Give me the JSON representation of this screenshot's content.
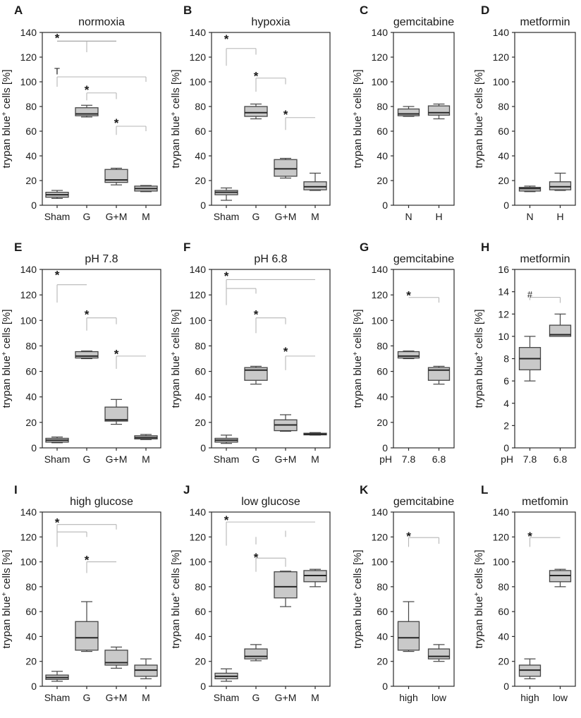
{
  "figure": {
    "ylabel": {
      "pre": "trypan blue",
      "sup": "+",
      "post": " cells [%]"
    }
  },
  "chart_data": [
    {
      "type": "box",
      "panel": "A",
      "title": "normoxia",
      "ylim": [
        0,
        140
      ],
      "ystep": 20,
      "grid": false,
      "categories": [
        "Sham",
        "G",
        "G+M",
        "M"
      ],
      "xprefix": "",
      "boxes": [
        {
          "lo": 5.5,
          "q1": 6.5,
          "med": 8.5,
          "q3": 10.5,
          "hi": 12
        },
        {
          "lo": 71.5,
          "q1": 72.5,
          "med": 74,
          "q3": 79,
          "hi": 81
        },
        {
          "lo": 16.5,
          "q1": 18.5,
          "med": 20.5,
          "q3": 29,
          "hi": 30
        },
        {
          "lo": 11,
          "q1": 11.5,
          "med": 13.5,
          "q3": 15.5,
          "hi": 16
        }
      ],
      "annotations": [
        {
          "t": "*",
          "x": 0,
          "y": 137
        },
        {
          "t": "T",
          "x": 0,
          "y": 109
        },
        {
          "t": "*",
          "x": 1,
          "y": 95
        },
        {
          "t": "*",
          "x": 2,
          "y": 68
        }
      ],
      "sig_lines": [
        {
          "x1": 0,
          "y1": 133,
          "x2": 2,
          "y2": 133,
          "d": 1
        },
        {
          "x1": 1,
          "y1": 133,
          "x2": 1,
          "y2": 124
        },
        {
          "x1": 0,
          "y1": 104,
          "x2": 3,
          "y2": 104
        },
        {
          "x1": 0,
          "y1": 104,
          "x2": 0,
          "y2": 96
        },
        {
          "x1": 3,
          "y1": 104,
          "x2": 3,
          "y2": 100
        },
        {
          "x1": 1,
          "y1": 91,
          "x2": 2,
          "y2": 91
        },
        {
          "x1": 1,
          "y1": 91,
          "x2": 1,
          "y2": 85
        },
        {
          "x1": 2,
          "y1": 91,
          "x2": 2,
          "y2": 86
        },
        {
          "x1": 2,
          "y1": 64,
          "x2": 3,
          "y2": 64
        },
        {
          "x1": 2,
          "y1": 64,
          "x2": 2,
          "y2": 57
        },
        {
          "x1": 3,
          "y1": 64,
          "x2": 3,
          "y2": 60
        }
      ]
    },
    {
      "type": "box",
      "panel": "B",
      "title": "hypoxia",
      "ylim": [
        0,
        140
      ],
      "ystep": 20,
      "grid": false,
      "categories": [
        "Sham",
        "G",
        "G+M",
        "M"
      ],
      "xprefix": "",
      "boxes": [
        {
          "lo": 4,
          "q1": 8.5,
          "med": 10.5,
          "q3": 12,
          "hi": 14
        },
        {
          "lo": 70,
          "q1": 72,
          "med": 75,
          "q3": 80,
          "hi": 82
        },
        {
          "lo": 22,
          "q1": 23.5,
          "med": 29.5,
          "q3": 37,
          "hi": 38
        },
        {
          "lo": 12,
          "q1": 12.5,
          "med": 15,
          "q3": 19,
          "hi": 26
        }
      ],
      "annotations": [
        {
          "t": "*",
          "x": 0,
          "y": 136
        },
        {
          "t": "*",
          "x": 1,
          "y": 106
        },
        {
          "t": "*",
          "x": 2,
          "y": 75
        }
      ],
      "sig_lines": [
        {
          "x1": 0,
          "y1": 127,
          "x2": 1,
          "y2": 127
        },
        {
          "x1": 0,
          "y1": 127,
          "x2": 0,
          "y2": 113
        },
        {
          "x1": 1,
          "y1": 127,
          "x2": 1,
          "y2": 122
        },
        {
          "x1": 1,
          "y1": 103,
          "x2": 2,
          "y2": 103
        },
        {
          "x1": 1,
          "y1": 103,
          "x2": 1,
          "y2": 92
        },
        {
          "x1": 2,
          "y1": 103,
          "x2": 2,
          "y2": 98
        },
        {
          "x1": 2,
          "y1": 71,
          "x2": 3,
          "y2": 71
        },
        {
          "x1": 2,
          "y1": 71,
          "x2": 2,
          "y2": 61
        }
      ]
    },
    {
      "type": "box",
      "panel": "C",
      "title": "gemcitabine",
      "ylim": [
        0,
        140
      ],
      "ystep": 20,
      "grid": false,
      "categories": [
        "N",
        "H"
      ],
      "xprefix": "",
      "boxes": [
        {
          "lo": 72,
          "q1": 72.5,
          "med": 74,
          "q3": 78,
          "hi": 80
        },
        {
          "lo": 70,
          "q1": 73,
          "med": 75,
          "q3": 80.5,
          "hi": 82
        }
      ],
      "annotations": [],
      "sig_lines": []
    },
    {
      "type": "box",
      "panel": "D",
      "title": "metformin",
      "ylim": [
        0,
        140
      ],
      "ystep": 20,
      "grid": false,
      "categories": [
        "N",
        "H"
      ],
      "xprefix": "",
      "boxes": [
        {
          "lo": 11,
          "q1": 11.5,
          "med": 13.5,
          "q3": 14.5,
          "hi": 15.5
        },
        {
          "lo": 12,
          "q1": 12.5,
          "med": 15,
          "q3": 19,
          "hi": 26
        }
      ],
      "annotations": [],
      "sig_lines": []
    },
    {
      "type": "box",
      "panel": "E",
      "title": "pH 7.8",
      "ylim": [
        0,
        140
      ],
      "ystep": 20,
      "grid": false,
      "categories": [
        "Sham",
        "G",
        "G+M",
        "M"
      ],
      "xprefix": "",
      "boxes": [
        {
          "lo": 4,
          "q1": 4.5,
          "med": 6,
          "q3": 7.5,
          "hi": 8.5
        },
        {
          "lo": 70,
          "q1": 70.5,
          "med": 72,
          "q3": 75.5,
          "hi": 76
        },
        {
          "lo": 18.5,
          "q1": 21,
          "med": 22,
          "q3": 32,
          "hi": 38
        },
        {
          "lo": 6.5,
          "q1": 7,
          "med": 8,
          "q3": 9.5,
          "hi": 10.5
        }
      ],
      "annotations": [
        {
          "t": "*",
          "x": 0,
          "y": 137
        },
        {
          "t": "*",
          "x": 1,
          "y": 106
        },
        {
          "t": "*",
          "x": 2,
          "y": 75
        }
      ],
      "sig_lines": [
        {
          "x1": 0,
          "y1": 128,
          "x2": 1,
          "y2": 128
        },
        {
          "x1": 0,
          "y1": 128,
          "x2": 0,
          "y2": 114
        },
        {
          "x1": 1,
          "y1": 102,
          "x2": 2,
          "y2": 102
        },
        {
          "x1": 1,
          "y1": 102,
          "x2": 1,
          "y2": 92
        },
        {
          "x1": 2,
          "y1": 102,
          "x2": 2,
          "y2": 97
        },
        {
          "x1": 2,
          "y1": 72,
          "x2": 3,
          "y2": 72
        },
        {
          "x1": 2,
          "y1": 72,
          "x2": 2,
          "y2": 62
        }
      ]
    },
    {
      "type": "box",
      "panel": "F",
      "title": "pH 6.8",
      "ylim": [
        0,
        140
      ],
      "ystep": 20,
      "grid": false,
      "categories": [
        "Sham",
        "G",
        "G+M",
        "M"
      ],
      "xprefix": "",
      "boxes": [
        {
          "lo": 3.5,
          "q1": 4.5,
          "med": 6,
          "q3": 7.5,
          "hi": 10
        },
        {
          "lo": 50,
          "q1": 53,
          "med": 61,
          "q3": 63,
          "hi": 64
        },
        {
          "lo": 13,
          "q1": 13.5,
          "med": 18,
          "q3": 22,
          "hi": 26
        },
        {
          "lo": 10,
          "q1": 10.2,
          "med": 10.7,
          "q3": 11.5,
          "hi": 12
        }
      ],
      "annotations": [
        {
          "t": "*",
          "x": 0,
          "y": 136
        },
        {
          "t": "*",
          "x": 1,
          "y": 106
        },
        {
          "t": "*",
          "x": 2,
          "y": 77
        }
      ],
      "sig_lines": [
        {
          "x1": 0,
          "y1": 132,
          "x2": 3,
          "y2": 132
        },
        {
          "x1": 0,
          "y1": 125,
          "x2": 1,
          "y2": 125
        },
        {
          "x1": 0,
          "y1": 132,
          "x2": 0,
          "y2": 112
        },
        {
          "x1": 1,
          "y1": 125,
          "x2": 1,
          "y2": 121
        },
        {
          "x1": 1,
          "y1": 102,
          "x2": 2,
          "y2": 102
        },
        {
          "x1": 1,
          "y1": 102,
          "x2": 1,
          "y2": 90
        },
        {
          "x1": 2,
          "y1": 102,
          "x2": 2,
          "y2": 97
        },
        {
          "x1": 2,
          "y1": 72,
          "x2": 3,
          "y2": 72
        },
        {
          "x1": 2,
          "y1": 72,
          "x2": 2,
          "y2": 61
        }
      ]
    },
    {
      "type": "box",
      "panel": "G",
      "title": "gemcitabine",
      "ylim": [
        0,
        140
      ],
      "ystep": 20,
      "grid": false,
      "categories": [
        "7.8",
        "6.8"
      ],
      "xprefix": "pH",
      "boxes": [
        {
          "lo": 70,
          "q1": 70.5,
          "med": 72,
          "q3": 75.5,
          "hi": 76
        },
        {
          "lo": 50,
          "q1": 53,
          "med": 61,
          "q3": 63,
          "hi": 64
        }
      ],
      "annotations": [
        {
          "t": "*",
          "x": 0,
          "y": 121
        }
      ],
      "sig_lines": [
        {
          "x1": 0,
          "y1": 118,
          "x2": 1,
          "y2": 118
        },
        {
          "x1": 1,
          "y1": 118,
          "x2": 1,
          "y2": 114
        }
      ]
    },
    {
      "type": "box",
      "panel": "H",
      "title": "metformin",
      "ylim": [
        0,
        16
      ],
      "ystep": 2,
      "grid": false,
      "categories": [
        "7.8",
        "6.8"
      ],
      "xprefix": "pH",
      "boxes": [
        {
          "lo": 6,
          "q1": 7,
          "med": 8,
          "q3": 9,
          "hi": 10
        },
        {
          "lo": 10,
          "q1": 10,
          "med": 10.15,
          "q3": 11,
          "hi": 12
        }
      ],
      "annotations": [
        {
          "t": "#",
          "x": 0,
          "y": 13.8
        }
      ],
      "sig_lines": [
        {
          "x1": 0,
          "y1": 13.5,
          "x2": 1,
          "y2": 13.5
        },
        {
          "x1": 0,
          "y1": 13.5,
          "x2": 0,
          "y2": 13.25
        },
        {
          "x1": 1,
          "y1": 13.5,
          "x2": 1,
          "y2": 13.0
        }
      ]
    },
    {
      "type": "box",
      "panel": "I",
      "title": "high glucose",
      "ylim": [
        0,
        140
      ],
      "ystep": 20,
      "grid": false,
      "categories": [
        "Sham",
        "G",
        "G+M",
        "M"
      ],
      "xprefix": "",
      "boxes": [
        {
          "lo": 4,
          "q1": 5.5,
          "med": 7,
          "q3": 9,
          "hi": 12
        },
        {
          "lo": 28,
          "q1": 29,
          "med": 39,
          "q3": 52,
          "hi": 68
        },
        {
          "lo": 14.5,
          "q1": 17,
          "med": 19,
          "q3": 29,
          "hi": 31.5
        },
        {
          "lo": 6,
          "q1": 8,
          "med": 13,
          "q3": 17,
          "hi": 22
        }
      ],
      "annotations": [
        {
          "t": "*",
          "x": 0,
          "y": 133
        },
        {
          "t": "*",
          "x": 1,
          "y": 103
        }
      ],
      "sig_lines": [
        {
          "x1": 0,
          "y1": 130,
          "x2": 2,
          "y2": 130
        },
        {
          "x1": 0,
          "y1": 124,
          "x2": 1,
          "y2": 124
        },
        {
          "x1": 0,
          "y1": 130,
          "x2": 0,
          "y2": 112
        },
        {
          "x1": 1,
          "y1": 124,
          "x2": 1,
          "y2": 120
        },
        {
          "x1": 2,
          "y1": 130,
          "x2": 2,
          "y2": 126
        },
        {
          "x1": 1,
          "y1": 100,
          "x2": 2,
          "y2": 100
        },
        {
          "x1": 1,
          "y1": 100,
          "x2": 1,
          "y2": 91
        }
      ]
    },
    {
      "type": "box",
      "panel": "J",
      "title": "low glucose",
      "ylim": [
        0,
        140
      ],
      "ystep": 20,
      "grid": false,
      "categories": [
        "Sham",
        "G",
        "G+M",
        "M"
      ],
      "xprefix": "",
      "boxes": [
        {
          "lo": 4,
          "q1": 6,
          "med": 8,
          "q3": 10.5,
          "hi": 14
        },
        {
          "lo": 20.5,
          "q1": 22,
          "med": 24,
          "q3": 30,
          "hi": 33.5
        },
        {
          "lo": 64,
          "q1": 71,
          "med": 80,
          "q3": 92,
          "hi": 92.5
        },
        {
          "lo": 80,
          "q1": 84,
          "med": 89,
          "q3": 93,
          "hi": 94
        }
      ],
      "annotations": [
        {
          "t": "*",
          "x": 0,
          "y": 135
        },
        {
          "t": "*",
          "x": 1,
          "y": 105
        }
      ],
      "sig_lines": [
        {
          "x1": 0,
          "y1": 132,
          "x2": 3,
          "y2": 132
        },
        {
          "x1": 0,
          "y1": 132,
          "x2": 0,
          "y2": 113
        },
        {
          "x1": 1,
          "y1": 120,
          "x2": 1,
          "y2": 114
        },
        {
          "x1": 2,
          "y1": 125,
          "x2": 2,
          "y2": 120
        },
        {
          "x1": 1,
          "y1": 103,
          "x2": 2,
          "y2": 103
        },
        {
          "x1": 1,
          "y1": 103,
          "x2": 1,
          "y2": 92
        },
        {
          "x1": 2,
          "y1": 103,
          "x2": 2,
          "y2": 96
        }
      ]
    },
    {
      "type": "box",
      "panel": "K",
      "title": "gemcitabine",
      "ylim": [
        0,
        140
      ],
      "ystep": 20,
      "grid": false,
      "categories": [
        "high",
        "low"
      ],
      "xprefix": "",
      "boxes": [
        {
          "lo": 28,
          "q1": 29,
          "med": 39,
          "q3": 52,
          "hi": 68
        },
        {
          "lo": 20,
          "q1": 22,
          "med": 24,
          "q3": 30,
          "hi": 33.5
        }
      ],
      "annotations": [
        {
          "t": "*",
          "x": 0,
          "y": 122
        }
      ],
      "sig_lines": [
        {
          "x1": 0,
          "y1": 119.5,
          "x2": 1,
          "y2": 119.5
        },
        {
          "x1": 0,
          "y1": 119.5,
          "x2": 0,
          "y2": 112
        },
        {
          "x1": 1,
          "y1": 119.5,
          "x2": 1,
          "y2": 114.5
        }
      ]
    },
    {
      "type": "box",
      "panel": "L",
      "title": "metfomin",
      "ylim": [
        0,
        140
      ],
      "ystep": 20,
      "grid": false,
      "categories": [
        "high",
        "low"
      ],
      "xprefix": "",
      "boxes": [
        {
          "lo": 6,
          "q1": 8,
          "med": 13,
          "q3": 17,
          "hi": 22
        },
        {
          "lo": 80,
          "q1": 84,
          "med": 89,
          "q3": 93,
          "hi": 94
        }
      ],
      "annotations": [
        {
          "t": "*",
          "x": 0,
          "y": 122
        }
      ],
      "sig_lines": [
        {
          "x1": 0,
          "y1": 119.5,
          "x2": 1,
          "y2": 119.5
        },
        {
          "x1": 0,
          "y1": 119.5,
          "x2": 0,
          "y2": 112
        }
      ]
    }
  ],
  "style": {
    "box_fill": "#c9c9c9",
    "box_stroke": "#454545",
    "median_color": "#262626",
    "frame_color": "#2b2b2b",
    "sig_color": "#b6b6b6",
    "sig_color_dark": "#8e8e8e",
    "text_color": "#1a1a1a"
  }
}
